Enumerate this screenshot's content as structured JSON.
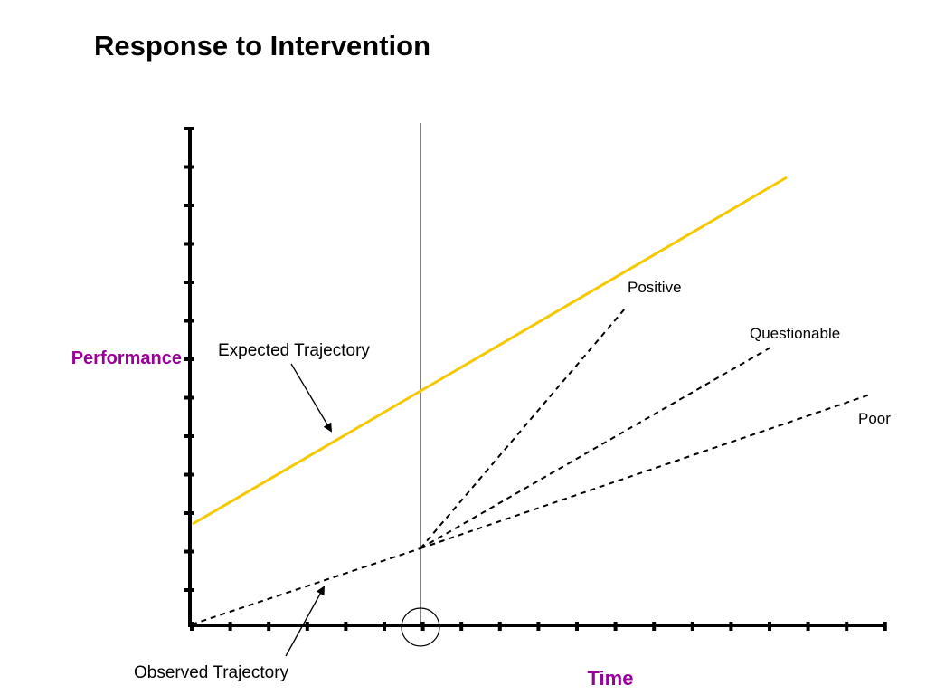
{
  "title": "Response to Intervention",
  "axes": {
    "y_label": "Performance",
    "x_label": "Time",
    "label_color": "#990099"
  },
  "colors": {
    "expected_line": "#f5c800",
    "axis": "#000000"
  },
  "labels": {
    "expected": "Expected Trajectory",
    "observed": "Observed Trajectory",
    "positive": "Positive",
    "questionable": "Questionable",
    "poor": "Poor"
  },
  "icons": {
    "intervention_marker": "circle"
  }
}
